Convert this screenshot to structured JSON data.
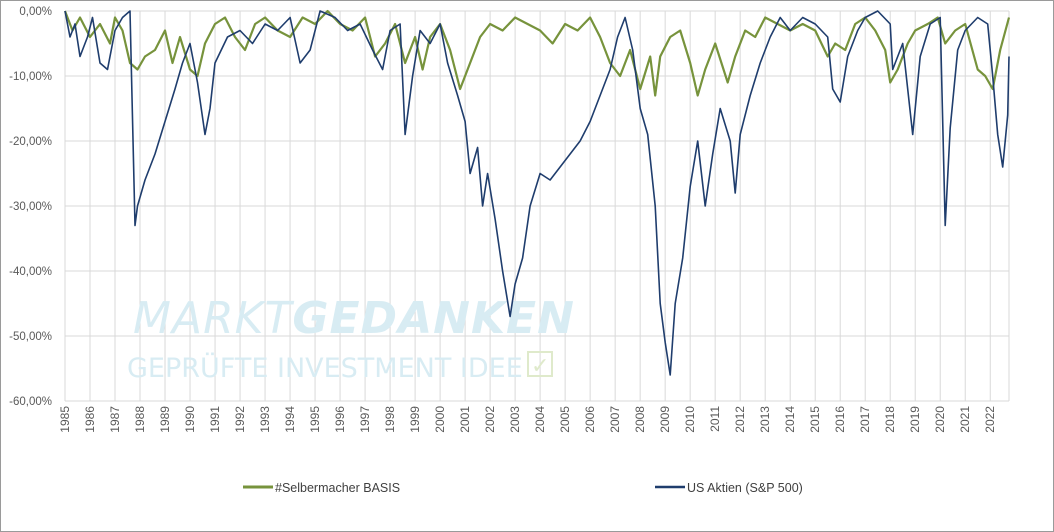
{
  "chart_data": {
    "type": "line",
    "title": "",
    "xlabel": "",
    "ylabel": "",
    "ylim": [
      -60,
      0
    ],
    "xlim": [
      1985,
      2022.75
    ],
    "y_ticks": [
      "0,00%",
      "-10,00%",
      "-20,00%",
      "-30,00%",
      "-40,00%",
      "-50,00%",
      "-60,00%"
    ],
    "x_ticks": [
      "1985",
      "1986",
      "1987",
      "1988",
      "1989",
      "1990",
      "1991",
      "1992",
      "1993",
      "1994",
      "1995",
      "1996",
      "1997",
      "1998",
      "1999",
      "2000",
      "2001",
      "2002",
      "2003",
      "2004",
      "2005",
      "2006",
      "2007",
      "2008",
      "2009",
      "2010",
      "2011",
      "2012",
      "2013",
      "2014",
      "2015",
      "2016",
      "2017",
      "2018",
      "2019",
      "2020",
      "2021",
      "2022"
    ],
    "grid": true,
    "legend_position": "bottom",
    "series": [
      {
        "name": "#Selbermacher BASIS",
        "color": "#77933c",
        "points": [
          [
            1985.0,
            0
          ],
          [
            1985.3,
            -3
          ],
          [
            1985.6,
            -1
          ],
          [
            1986.0,
            -4
          ],
          [
            1986.4,
            -2
          ],
          [
            1986.8,
            -5
          ],
          [
            1987.0,
            -1
          ],
          [
            1987.3,
            -3
          ],
          [
            1987.6,
            -8
          ],
          [
            1987.9,
            -9
          ],
          [
            1988.2,
            -7
          ],
          [
            1988.6,
            -6
          ],
          [
            1989.0,
            -3
          ],
          [
            1989.3,
            -8
          ],
          [
            1989.6,
            -4
          ],
          [
            1990.0,
            -9
          ],
          [
            1990.3,
            -10
          ],
          [
            1990.6,
            -5
          ],
          [
            1991.0,
            -2
          ],
          [
            1991.4,
            -1
          ],
          [
            1991.8,
            -4
          ],
          [
            1992.2,
            -6
          ],
          [
            1992.6,
            -2
          ],
          [
            1993.0,
            -1
          ],
          [
            1993.5,
            -3
          ],
          [
            1994.0,
            -4
          ],
          [
            1994.5,
            -1
          ],
          [
            1995.0,
            -2
          ],
          [
            1995.5,
            0
          ],
          [
            1996.0,
            -2
          ],
          [
            1996.5,
            -3
          ],
          [
            1997.0,
            -1
          ],
          [
            1997.4,
            -7
          ],
          [
            1997.8,
            -5
          ],
          [
            1998.2,
            -2
          ],
          [
            1998.6,
            -8
          ],
          [
            1999.0,
            -4
          ],
          [
            1999.3,
            -9
          ],
          [
            1999.6,
            -4
          ],
          [
            2000.0,
            -2
          ],
          [
            2000.4,
            -6
          ],
          [
            2000.8,
            -12
          ],
          [
            2001.2,
            -8
          ],
          [
            2001.6,
            -4
          ],
          [
            2002.0,
            -2
          ],
          [
            2002.5,
            -3
          ],
          [
            2003.0,
            -1
          ],
          [
            2003.5,
            -2
          ],
          [
            2004.0,
            -3
          ],
          [
            2004.5,
            -5
          ],
          [
            2005.0,
            -2
          ],
          [
            2005.5,
            -3
          ],
          [
            2006.0,
            -1
          ],
          [
            2006.4,
            -4
          ],
          [
            2006.8,
            -8
          ],
          [
            2007.2,
            -10
          ],
          [
            2007.6,
            -6
          ],
          [
            2008.0,
            -12
          ],
          [
            2008.4,
            -7
          ],
          [
            2008.6,
            -13
          ],
          [
            2008.8,
            -7
          ],
          [
            2009.2,
            -4
          ],
          [
            2009.6,
            -3
          ],
          [
            2010.0,
            -8
          ],
          [
            2010.3,
            -13
          ],
          [
            2010.6,
            -9
          ],
          [
            2011.0,
            -5
          ],
          [
            2011.5,
            -11
          ],
          [
            2011.8,
            -7
          ],
          [
            2012.2,
            -3
          ],
          [
            2012.6,
            -4
          ],
          [
            2013.0,
            -1
          ],
          [
            2013.5,
            -2
          ],
          [
            2014.0,
            -3
          ],
          [
            2014.5,
            -2
          ],
          [
            2015.0,
            -3
          ],
          [
            2015.5,
            -7
          ],
          [
            2015.8,
            -5
          ],
          [
            2016.2,
            -6
          ],
          [
            2016.6,
            -2
          ],
          [
            2017.0,
            -1
          ],
          [
            2017.4,
            -3
          ],
          [
            2017.8,
            -6
          ],
          [
            2018.0,
            -11
          ],
          [
            2018.3,
            -9
          ],
          [
            2018.7,
            -5
          ],
          [
            2019.0,
            -3
          ],
          [
            2019.5,
            -2
          ],
          [
            2019.9,
            -1
          ],
          [
            2020.2,
            -5
          ],
          [
            2020.6,
            -3
          ],
          [
            2021.0,
            -2
          ],
          [
            2021.5,
            -9
          ],
          [
            2021.8,
            -10
          ],
          [
            2022.1,
            -12
          ],
          [
            2022.4,
            -6
          ],
          [
            2022.75,
            -1
          ]
        ]
      },
      {
        "name": "US Aktien (S&P 500)",
        "color": "#1f3d6d",
        "points": [
          [
            1985.0,
            0
          ],
          [
            1985.2,
            -4
          ],
          [
            1985.4,
            -2
          ],
          [
            1985.6,
            -7
          ],
          [
            1985.9,
            -4
          ],
          [
            1986.1,
            -1
          ],
          [
            1986.4,
            -8
          ],
          [
            1986.7,
            -9
          ],
          [
            1987.0,
            -3
          ],
          [
            1987.3,
            -1
          ],
          [
            1987.6,
            0
          ],
          [
            1987.8,
            -33
          ],
          [
            1987.9,
            -30
          ],
          [
            1988.2,
            -26
          ],
          [
            1988.6,
            -22
          ],
          [
            1989.0,
            -17
          ],
          [
            1989.4,
            -12
          ],
          [
            1989.7,
            -8
          ],
          [
            1990.0,
            -5
          ],
          [
            1990.3,
            -11
          ],
          [
            1990.6,
            -19
          ],
          [
            1990.8,
            -15
          ],
          [
            1991.0,
            -8
          ],
          [
            1991.5,
            -4
          ],
          [
            1992.0,
            -3
          ],
          [
            1992.5,
            -5
          ],
          [
            1993.0,
            -2
          ],
          [
            1993.5,
            -3
          ],
          [
            1994.0,
            -1
          ],
          [
            1994.4,
            -8
          ],
          [
            1994.8,
            -6
          ],
          [
            1995.2,
            0
          ],
          [
            1995.8,
            -1
          ],
          [
            1996.3,
            -3
          ],
          [
            1996.8,
            -2
          ],
          [
            1997.3,
            -6
          ],
          [
            1997.7,
            -9
          ],
          [
            1998.0,
            -3
          ],
          [
            1998.4,
            -2
          ],
          [
            1998.6,
            -19
          ],
          [
            1998.9,
            -10
          ],
          [
            1999.2,
            -3
          ],
          [
            1999.6,
            -5
          ],
          [
            2000.0,
            -2
          ],
          [
            2000.3,
            -8
          ],
          [
            2000.7,
            -13
          ],
          [
            2001.0,
            -17
          ],
          [
            2001.2,
            -25
          ],
          [
            2001.5,
            -21
          ],
          [
            2001.7,
            -30
          ],
          [
            2001.9,
            -25
          ],
          [
            2002.2,
            -32
          ],
          [
            2002.5,
            -40
          ],
          [
            2002.8,
            -47
          ],
          [
            2003.0,
            -42
          ],
          [
            2003.3,
            -38
          ],
          [
            2003.6,
            -30
          ],
          [
            2004.0,
            -25
          ],
          [
            2004.4,
            -26
          ],
          [
            2004.8,
            -24
          ],
          [
            2005.2,
            -22
          ],
          [
            2005.6,
            -20
          ],
          [
            2006.0,
            -17
          ],
          [
            2006.4,
            -13
          ],
          [
            2006.8,
            -9
          ],
          [
            2007.1,
            -4
          ],
          [
            2007.4,
            -1
          ],
          [
            2007.7,
            -6
          ],
          [
            2008.0,
            -15
          ],
          [
            2008.3,
            -19
          ],
          [
            2008.6,
            -30
          ],
          [
            2008.8,
            -45
          ],
          [
            2009.0,
            -51
          ],
          [
            2009.2,
            -56
          ],
          [
            2009.4,
            -45
          ],
          [
            2009.7,
            -38
          ],
          [
            2010.0,
            -27
          ],
          [
            2010.3,
            -20
          ],
          [
            2010.6,
            -30
          ],
          [
            2010.9,
            -22
          ],
          [
            2011.2,
            -15
          ],
          [
            2011.6,
            -20
          ],
          [
            2011.8,
            -28
          ],
          [
            2012.0,
            -19
          ],
          [
            2012.4,
            -13
          ],
          [
            2012.8,
            -8
          ],
          [
            2013.2,
            -4
          ],
          [
            2013.6,
            -1
          ],
          [
            2014.0,
            -3
          ],
          [
            2014.5,
            -1
          ],
          [
            2015.0,
            -2
          ],
          [
            2015.5,
            -4
          ],
          [
            2015.7,
            -12
          ],
          [
            2016.0,
            -14
          ],
          [
            2016.3,
            -7
          ],
          [
            2016.7,
            -3
          ],
          [
            2017.0,
            -1
          ],
          [
            2017.5,
            0
          ],
          [
            2018.0,
            -2
          ],
          [
            2018.1,
            -9
          ],
          [
            2018.5,
            -5
          ],
          [
            2018.9,
            -19
          ],
          [
            2019.2,
            -7
          ],
          [
            2019.6,
            -2
          ],
          [
            2020.0,
            -1
          ],
          [
            2020.2,
            -33
          ],
          [
            2020.4,
            -18
          ],
          [
            2020.7,
            -6
          ],
          [
            2021.0,
            -3
          ],
          [
            2021.5,
            -1
          ],
          [
            2021.9,
            -2
          ],
          [
            2022.1,
            -10
          ],
          [
            2022.3,
            -19
          ],
          [
            2022.5,
            -24
          ],
          [
            2022.7,
            -16
          ],
          [
            2022.75,
            -7
          ]
        ]
      }
    ]
  },
  "watermark": {
    "title_part1": "MARKT",
    "title_part2": "GEDANKEN",
    "subtitle": "GEPRÜFTE INVESTMENT IDEE",
    "check_glyph": "✓",
    "color_title": "#d8ecf3",
    "color_sub": "#d8ecf3",
    "color_check": "#dfeacb"
  }
}
